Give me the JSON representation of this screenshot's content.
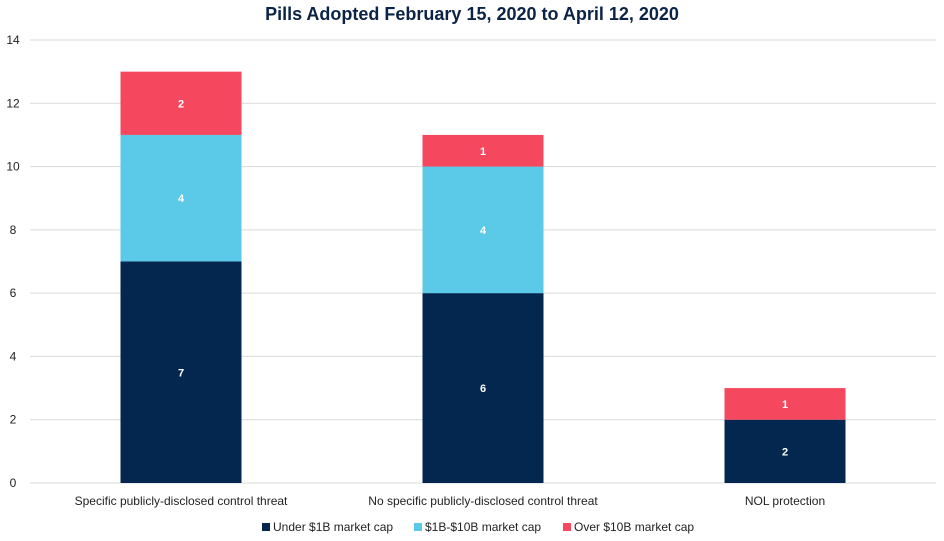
{
  "chart_data": {
    "type": "bar",
    "stacked": true,
    "title": "Pills Adopted February 15, 2020 to April 12, 2020",
    "xlabel": "",
    "ylabel": "",
    "categories": [
      "Specific publicly-disclosed control threat",
      "No specific publicly-disclosed control threat",
      "NOL protection"
    ],
    "series": [
      {
        "name": "Under $1B market cap",
        "values": [
          7,
          6,
          2
        ],
        "color": "#03274f"
      },
      {
        "name": "$1B-$10B market cap",
        "values": [
          4,
          4,
          0
        ],
        "color": "#5bc9e8"
      },
      {
        "name": "Over $10B market cap",
        "values": [
          2,
          1,
          1
        ],
        "color": "#f5485f"
      }
    ],
    "ylim": [
      0,
      14
    ],
    "yticks": [
      0,
      2,
      4,
      6,
      8,
      10,
      12,
      14
    ],
    "grid": true,
    "legend_position": "bottom"
  }
}
